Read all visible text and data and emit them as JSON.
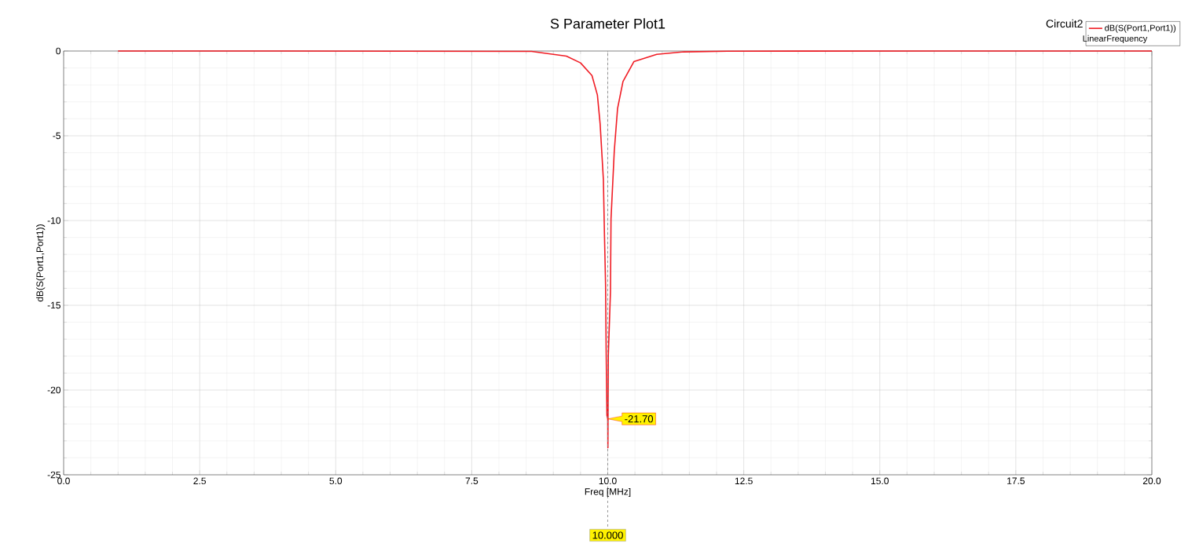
{
  "chart_data": {
    "type": "line",
    "title": "S Parameter Plot1",
    "xlabel": "Freq [MHz]",
    "ylabel": "dB(S(Port1,Port1))",
    "series": [
      {
        "name": "dB(S(Port1,Port1))",
        "color": "#f01c24",
        "x": [
          1.0,
          4.0,
          8.6,
          9.24,
          9.5,
          9.71,
          9.81,
          9.86,
          9.92,
          9.94,
          9.96,
          9.97,
          9.985,
          10.0,
          10.003,
          10.01,
          10.05,
          10.06,
          10.12,
          10.18,
          10.28,
          10.48,
          10.9,
          11.4,
          12.2,
          16.0,
          20.0
        ],
        "values": [
          0,
          0,
          -0.02,
          -0.3,
          -0.7,
          -1.45,
          -2.6,
          -4.3,
          -7.6,
          -10.9,
          -13.8,
          -17.5,
          -21.5,
          -21.7,
          -23.4,
          -18.0,
          -14.2,
          -9.9,
          -5.9,
          -3.4,
          -1.8,
          -0.63,
          -0.2,
          -0.05,
          -0.01,
          0,
          0
        ]
      }
    ],
    "xlim": [
      0,
      20
    ],
    "ylim": [
      -25,
      0
    ],
    "xticks": [
      {
        "value": 0,
        "label": "0.0"
      },
      {
        "value": 2.5,
        "label": "2.5"
      },
      {
        "value": 5,
        "label": "5.0"
      },
      {
        "value": 7.5,
        "label": "7.5"
      },
      {
        "value": 10,
        "label": "10.0"
      },
      {
        "value": 12.5,
        "label": "12.5"
      },
      {
        "value": 15,
        "label": "15.0"
      },
      {
        "value": 17.5,
        "label": "17.5"
      },
      {
        "value": 20,
        "label": "20.0"
      }
    ],
    "yticks": [
      -25,
      -20,
      -15,
      -10,
      -5,
      0
    ],
    "grid": true,
    "legend": "top right",
    "line_style": "solid",
    "ref_lines": [
      {
        "axis": "x",
        "value": 10,
        "label": "10.000",
        "color": "#808080",
        "line_style": "dashed"
      }
    ],
    "annotations": [
      {
        "text": "-21.70",
        "x": 10,
        "y": -21.7
      },
      "Circuit2",
      "LinearFrequency"
    ]
  }
}
